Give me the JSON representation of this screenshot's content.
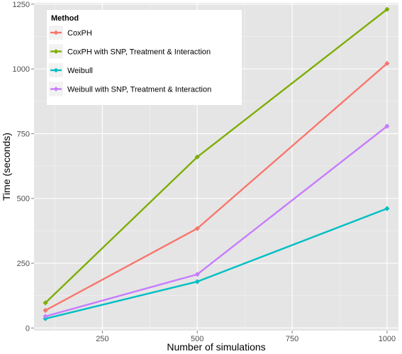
{
  "chart_data": {
    "type": "line",
    "xlabel": "Number of simulations",
    "ylabel": "Time (seconds)",
    "xlim": [
      70,
      1030
    ],
    "ylim": [
      -10,
      1255
    ],
    "x_ticks": [
      250,
      500,
      750,
      1000
    ],
    "y_ticks": [
      0,
      250,
      500,
      750,
      1000,
      1250
    ],
    "grid": true,
    "legend": {
      "title": "Method",
      "placement": "top-left"
    },
    "series": [
      {
        "name": "CoxPH",
        "color": "#F8766D",
        "x": [
          100,
          500,
          1000
        ],
        "y": [
          68,
          384,
          1021
        ]
      },
      {
        "name": "CoxPH with SNP, Treatment & Interaction",
        "color": "#7CAE00",
        "x": [
          100,
          500,
          1000
        ],
        "y": [
          97,
          660,
          1230
        ]
      },
      {
        "name": "Weibull",
        "color": "#00BFC4",
        "x": [
          100,
          500,
          1000
        ],
        "y": [
          36,
          179,
          461
        ]
      },
      {
        "name": "Weibull with SNP, Treatment & Interaction",
        "color": "#C77CFF",
        "x": [
          100,
          500,
          1000
        ],
        "y": [
          45,
          207,
          779
        ]
      }
    ]
  }
}
